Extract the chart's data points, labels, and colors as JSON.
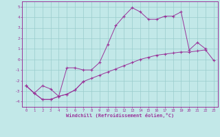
{
  "xlabel": "Windchill (Refroidissement éolien,°C)",
  "bg_color": "#c2e8e8",
  "line_color": "#993399",
  "grid_color": "#99cccc",
  "xlim": [
    -0.5,
    23.5
  ],
  "ylim": [
    -4.5,
    5.5
  ],
  "xticks": [
    0,
    1,
    2,
    3,
    4,
    5,
    6,
    7,
    8,
    9,
    10,
    11,
    12,
    13,
    14,
    15,
    16,
    17,
    18,
    19,
    20,
    21,
    22,
    23
  ],
  "yticks": [
    -4,
    -3,
    -2,
    -1,
    0,
    1,
    2,
    3,
    4,
    5
  ],
  "line1_x": [
    0,
    1,
    2,
    3,
    4,
    5,
    6,
    7,
    8,
    9,
    10,
    11,
    12,
    13,
    14,
    15,
    16,
    17,
    18,
    19,
    20,
    21,
    22
  ],
  "line1_y": [
    -2.5,
    -3.2,
    -3.8,
    -3.8,
    -3.5,
    -0.8,
    -0.8,
    -1.0,
    -1.0,
    -0.3,
    1.4,
    3.2,
    4.1,
    4.9,
    4.5,
    3.8,
    3.8,
    4.1,
    4.1,
    4.5,
    0.9,
    1.6,
    1.0
  ],
  "line2_x": [
    0,
    1,
    2,
    3,
    4,
    5,
    6,
    7,
    8,
    9,
    10,
    11,
    12,
    13,
    14,
    15,
    16,
    17,
    18,
    19,
    20,
    21,
    22,
    23
  ],
  "line2_y": [
    -2.5,
    -3.2,
    -3.8,
    -3.8,
    -3.5,
    -3.3,
    -2.9,
    -2.1,
    -1.8,
    -1.5,
    -1.2,
    -0.9,
    -0.6,
    -0.3,
    0.0,
    0.2,
    0.4,
    0.5,
    0.6,
    0.7,
    0.7,
    0.8,
    0.9,
    -0.1
  ],
  "line3_x": [
    0,
    1,
    2,
    3,
    4,
    5,
    6,
    7
  ],
  "line3_y": [
    -2.5,
    -3.2,
    -2.5,
    -2.8,
    -3.5,
    -3.3,
    -2.9,
    -2.1
  ]
}
